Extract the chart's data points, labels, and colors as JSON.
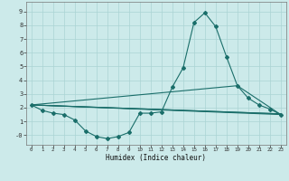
{
  "xlabel": "Humidex (Indice chaleur)",
  "bg_color": "#cceaea",
  "line_color": "#1a6e6a",
  "grid_color": "#aad4d4",
  "xlim": [
    -0.5,
    23.5
  ],
  "ylim": [
    -0.7,
    9.7
  ],
  "xticks": [
    0,
    1,
    2,
    3,
    4,
    5,
    6,
    7,
    8,
    9,
    10,
    11,
    12,
    13,
    14,
    15,
    16,
    17,
    18,
    19,
    20,
    21,
    22,
    23
  ],
  "yticks": [
    0,
    1,
    2,
    3,
    4,
    5,
    6,
    7,
    8,
    9
  ],
  "ytick_labels": [
    "-0",
    "1",
    "2",
    "3",
    "4",
    "5",
    "6",
    "7",
    "8",
    "9"
  ],
  "line1_x": [
    0,
    1,
    2,
    3,
    4,
    5,
    6,
    7,
    8,
    9,
    10,
    11,
    12,
    13,
    14,
    15,
    16,
    17,
    18,
    19,
    20,
    21,
    22,
    23
  ],
  "line1_y": [
    2.2,
    1.8,
    1.6,
    1.5,
    1.1,
    0.3,
    -0.1,
    -0.25,
    -0.1,
    0.2,
    1.6,
    1.6,
    1.7,
    3.5,
    4.9,
    8.2,
    8.9,
    7.9,
    5.7,
    3.6,
    2.7,
    2.2,
    1.9,
    1.5
  ],
  "line2_x": [
    0,
    23
  ],
  "line2_y": [
    2.2,
    1.5
  ],
  "line3_x": [
    0,
    23
  ],
  "line3_y": [
    2.2,
    1.55
  ],
  "line4_x": [
    0,
    23
  ],
  "line4_y": [
    2.2,
    1.55
  ],
  "line5_x": [
    0,
    19,
    23
  ],
  "line5_y": [
    2.2,
    3.6,
    1.5
  ]
}
